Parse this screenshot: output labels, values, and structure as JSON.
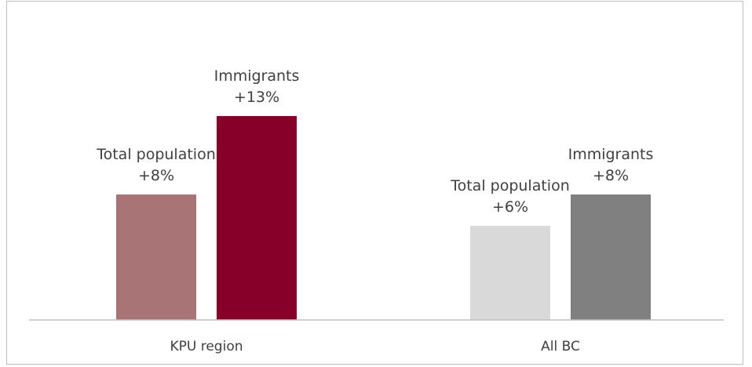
{
  "chart_data": {
    "type": "bar",
    "title": "",
    "xlabel": "",
    "ylabel": "",
    "categories": [
      "KPU region",
      "All BC"
    ],
    "ylim": [
      0,
      14.8
    ],
    "grid": false,
    "legend": "none",
    "bars": [
      {
        "category_index": 0,
        "slot": 0,
        "label_line1": "Total population",
        "label_line2": "+8%",
        "value": 8,
        "color": "#a87476"
      },
      {
        "category_index": 0,
        "slot": 1,
        "label_line1": "Immigrants",
        "label_line2": "+13%",
        "value": 13,
        "color": "#870029"
      },
      {
        "category_index": 1,
        "slot": 0,
        "label_line1": "Total population",
        "label_line2": "+6%",
        "value": 6,
        "color": "#d9d9d9"
      },
      {
        "category_index": 1,
        "slot": 1,
        "label_line1": "Immigrants",
        "label_line2": "+8%",
        "value": 8,
        "color": "#808080"
      }
    ],
    "axis_color": "#bfbfbf"
  }
}
